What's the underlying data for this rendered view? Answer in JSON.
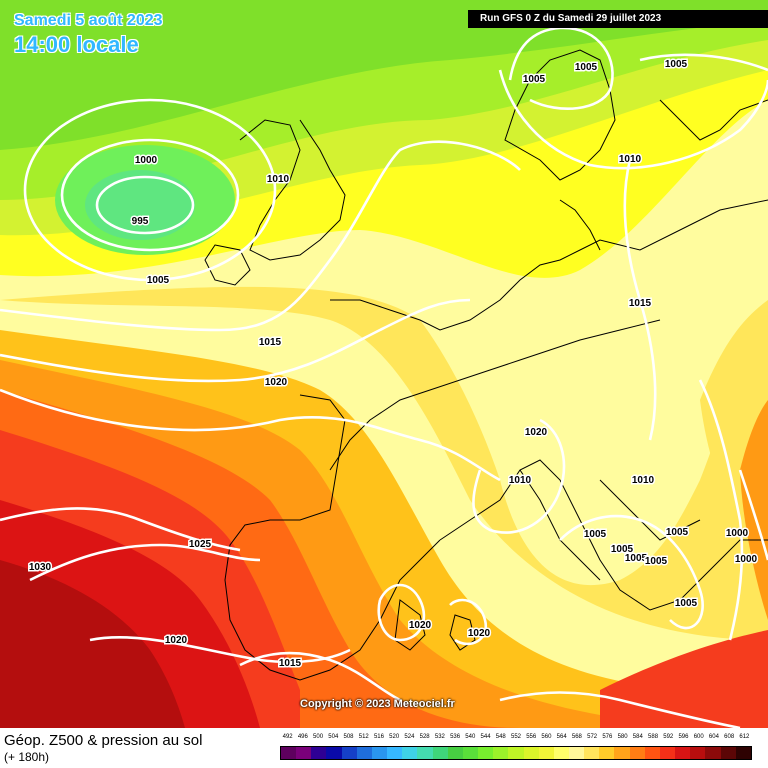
{
  "header": {
    "date_line": "Samedi 5 août 2023",
    "time_line": "14:00 locale",
    "run_info": "Run GFS 0 Z du Samedi 29 juillet 2023"
  },
  "copyright": "Copyright © 2023 Meteociel.fr",
  "footer": {
    "title": "Géop. Z500 & pression au sol",
    "subtitle": "(+ 180h)"
  },
  "scale": {
    "labels": [
      "492",
      "496",
      "500",
      "504",
      "508",
      "512",
      "516",
      "520",
      "524",
      "528",
      "532",
      "536",
      "540",
      "544",
      "548",
      "552",
      "556",
      "560",
      "564",
      "568",
      "572",
      "576",
      "580",
      "584",
      "588",
      "592",
      "596",
      "600",
      "604",
      "608",
      "612"
    ],
    "colors": [
      "#5e005e",
      "#7a007a",
      "#2e0094",
      "#0a0aa8",
      "#1540c8",
      "#1f6edc",
      "#2a96ee",
      "#36b8ff",
      "#3fd2e6",
      "#44dcb0",
      "#3fd67a",
      "#47cf42",
      "#5ae03a",
      "#78ef2e",
      "#9cf22a",
      "#bff526",
      "#dcf52a",
      "#f2f538",
      "#ffff6a",
      "#fff79a",
      "#ffe45c",
      "#ffcc2a",
      "#ffa41a",
      "#ff7d14",
      "#ff5412",
      "#f53018",
      "#d81414",
      "#b80e0e",
      "#8c0a0a",
      "#5c0606",
      "#2e0202"
    ]
  },
  "map": {
    "isobar_labels": [
      "1000",
      "995",
      "1005",
      "1010",
      "1015",
      "1020",
      "1025",
      "1030",
      "1005",
      "1005",
      "1005",
      "1010",
      "1015",
      "1020",
      "1010",
      "1010",
      "1005",
      "1005",
      "1005",
      "1005",
      "1005",
      "1000",
      "1000",
      "1005",
      "1020",
      "1020",
      "1015",
      "1020"
    ]
  }
}
